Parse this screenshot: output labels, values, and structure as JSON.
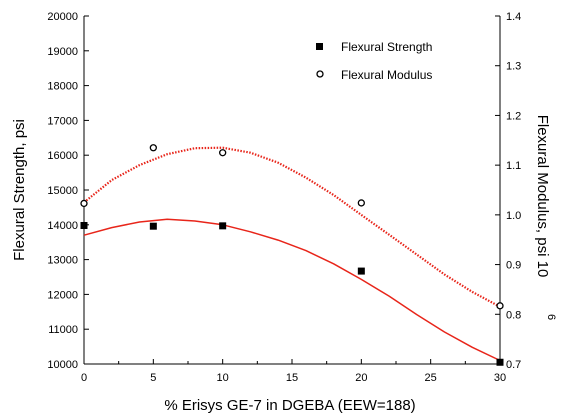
{
  "chart_data": {
    "type": "scatter",
    "xlabel": "% Erisys GE-7 in DGEBA (EEW=188)",
    "ylabel_left": "Flexural Strength, psi",
    "ylabel_right": "Flexural Modulus, psi 10",
    "ylabel_right_exponent": "6",
    "xlim": [
      0,
      30
    ],
    "ylim_left": [
      10000,
      20000
    ],
    "ylim_right": [
      0.7,
      1.4
    ],
    "x_ticks": [
      "0",
      "5",
      "10",
      "15",
      "20",
      "25",
      "30"
    ],
    "y_left_ticks": [
      "10000",
      "11000",
      "12000",
      "13000",
      "14000",
      "15000",
      "16000",
      "17000",
      "18000",
      "19000",
      "20000"
    ],
    "y_right_ticks": [
      "0.7",
      "0.8",
      "0.9",
      "1.0",
      "1.1",
      "1.2",
      "1.3",
      "1.4"
    ],
    "legend_position": "top-right",
    "series": [
      {
        "name": "Flexural Strength",
        "axis": "left",
        "marker": "filled-square",
        "color": "#000000",
        "x": [
          0,
          5,
          10,
          20,
          30
        ],
        "y": [
          13980,
          13960,
          13970,
          12670,
          10050
        ]
      },
      {
        "name": "Flexural Modulus",
        "axis": "right",
        "marker": "open-circle",
        "color": "#000000",
        "x": [
          0,
          5,
          10,
          20,
          30
        ],
        "y": [
          1.023,
          1.135,
          1.125,
          1.024,
          0.817
        ]
      }
    ],
    "fits": [
      {
        "axis": "left",
        "style": "solid",
        "color": "#e8251a",
        "x": [
          0,
          2,
          4,
          6,
          8,
          10,
          12,
          14,
          16,
          18,
          20,
          22,
          24,
          26,
          28,
          30
        ],
        "y": [
          13700,
          13920,
          14080,
          14160,
          14110,
          14000,
          13800,
          13560,
          13260,
          12880,
          12430,
          11950,
          11420,
          10920,
          10480,
          10100
        ]
      },
      {
        "axis": "right",
        "style": "dotted",
        "color": "#e8251a",
        "x": [
          0,
          2,
          4,
          6,
          8,
          10,
          12,
          14,
          16,
          18,
          20,
          22,
          24,
          26,
          28,
          30
        ],
        "y": [
          1.025,
          1.07,
          1.1,
          1.122,
          1.134,
          1.135,
          1.125,
          1.105,
          1.075,
          1.04,
          1.0,
          0.96,
          0.92,
          0.88,
          0.845,
          0.815
        ]
      }
    ]
  }
}
